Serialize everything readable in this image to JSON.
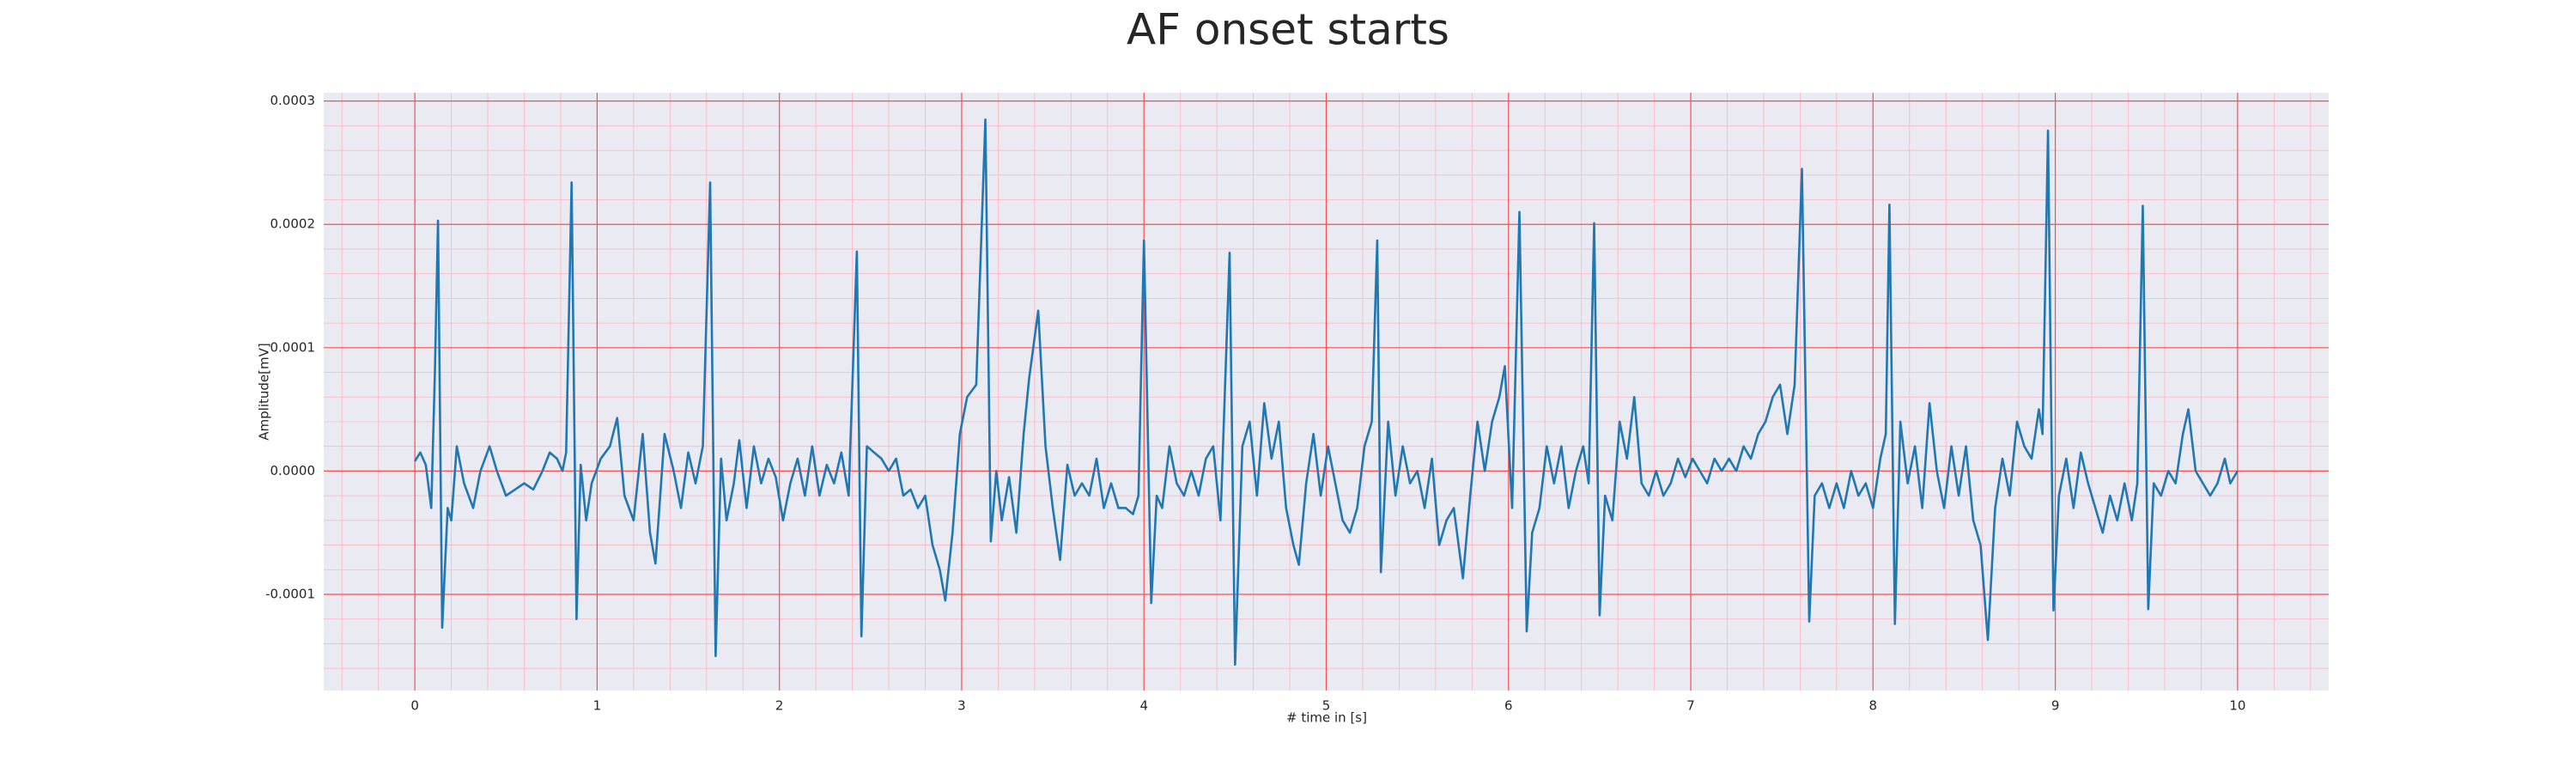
{
  "chart_data": {
    "type": "line",
    "title": "AF onset starts",
    "xlabel": "# time in [s]",
    "ylabel": "Amplitude[mV]",
    "color": "#1f77b4",
    "grid": true,
    "minor_grid_divisions": 5,
    "xlim": [
      -0.5,
      10.5
    ],
    "ylim": [
      -0.000178,
      0.0003067
    ],
    "xticks": [
      0,
      1,
      2,
      3,
      4,
      5,
      6,
      7,
      8,
      9,
      10
    ],
    "yticks": [
      {
        "value": -0.0001,
        "label": "-0.0001"
      },
      {
        "value": 0,
        "label": "0.0000"
      },
      {
        "value": 0.0001,
        "label": "0.0001"
      },
      {
        "value": 0.0002,
        "label": "0.0002"
      },
      {
        "value": 0.0003,
        "label": "0.0003"
      }
    ],
    "x": [
      0,
      0.03,
      0.06,
      0.09,
      0.11,
      0.127,
      0.15,
      0.18,
      0.2,
      0.23,
      0.27,
      0.32,
      0.36,
      0.41,
      0.45,
      0.5,
      0.55,
      0.6,
      0.65,
      0.7,
      0.74,
      0.78,
      0.81,
      0.83,
      0.86,
      0.887,
      0.91,
      0.94,
      0.97,
      1.02,
      1.07,
      1.11,
      1.15,
      1.2,
      1.25,
      1.29,
      1.32,
      1.37,
      1.42,
      1.46,
      1.5,
      1.54,
      1.58,
      1.62,
      1.65,
      1.68,
      1.71,
      1.75,
      1.78,
      1.82,
      1.86,
      1.9,
      1.94,
      1.98,
      2.02,
      2.06,
      2.1,
      2.14,
      2.18,
      2.22,
      2.26,
      2.3,
      2.34,
      2.38,
      2.425,
      2.45,
      2.48,
      2.52,
      2.56,
      2.6,
      2.64,
      2.68,
      2.72,
      2.76,
      2.8,
      2.84,
      2.88,
      2.91,
      2.95,
      2.99,
      3.03,
      3.08,
      3.13,
      3.16,
      3.19,
      3.22,
      3.26,
      3.3,
      3.34,
      3.37,
      3.42,
      3.46,
      3.5,
      3.54,
      3.58,
      3.62,
      3.66,
      3.7,
      3.74,
      3.78,
      3.82,
      3.86,
      3.9,
      3.94,
      3.97,
      4.0,
      4.04,
      4.07,
      4.1,
      4.14,
      4.18,
      4.22,
      4.26,
      4.3,
      4.34,
      4.38,
      4.42,
      4.47,
      4.5,
      4.54,
      4.58,
      4.62,
      4.66,
      4.7,
      4.74,
      4.78,
      4.82,
      4.85,
      4.89,
      4.93,
      4.97,
      5.01,
      5.05,
      5.09,
      5.13,
      5.17,
      5.21,
      5.25,
      5.28,
      5.3,
      5.34,
      5.38,
      5.42,
      5.46,
      5.5,
      5.54,
      5.58,
      5.62,
      5.66,
      5.7,
      5.75,
      5.79,
      5.83,
      5.87,
      5.91,
      5.95,
      5.98,
      6.02,
      6.06,
      6.1,
      6.13,
      6.17,
      6.21,
      6.25,
      6.29,
      6.33,
      6.37,
      6.41,
      6.44,
      6.47,
      6.5,
      6.53,
      6.57,
      6.61,
      6.65,
      6.69,
      6.73,
      6.77,
      6.81,
      6.85,
      6.89,
      6.93,
      6.97,
      7.01,
      7.05,
      7.09,
      7.13,
      7.17,
      7.21,
      7.25,
      7.29,
      7.33,
      7.37,
      7.41,
      7.45,
      7.49,
      7.53,
      7.57,
      7.61,
      7.65,
      7.68,
      7.72,
      7.76,
      7.8,
      7.84,
      7.88,
      7.92,
      7.96,
      8.0,
      8.04,
      8.07,
      8.09,
      8.12,
      8.15,
      8.19,
      8.23,
      8.27,
      8.31,
      8.35,
      8.39,
      8.43,
      8.47,
      8.51,
      8.55,
      8.59,
      8.63,
      8.67,
      8.71,
      8.75,
      8.79,
      8.83,
      8.87,
      8.91,
      8.93,
      8.96,
      8.99,
      9.02,
      9.06,
      9.1,
      9.14,
      9.18,
      9.22,
      9.26,
      9.3,
      9.34,
      9.38,
      9.42,
      9.45,
      9.48,
      9.51,
      9.54,
      9.58,
      9.62,
      9.66,
      9.7,
      9.73,
      9.77,
      9.81,
      9.85,
      9.89,
      9.93,
      9.96,
      10.0
    ],
    "values": [
      8e-06,
      1.5e-05,
      5e-06,
      -3e-05,
      8e-05,
      0.000203,
      -0.000127,
      -3e-05,
      -4e-05,
      2e-05,
      -1e-05,
      -3e-05,
      0,
      2e-05,
      0,
      -2e-05,
      -1.5e-05,
      -1e-05,
      -1.5e-05,
      0,
      1.5e-05,
      1e-05,
      0,
      1.5e-05,
      0.000234,
      -0.00012,
      5e-06,
      -4e-05,
      -1e-05,
      1e-05,
      2e-05,
      4.3e-05,
      -2e-05,
      -4e-05,
      3e-05,
      -5e-05,
      -7.5e-05,
      3e-05,
      0,
      -3e-05,
      1.5e-05,
      -1e-05,
      2e-05,
      0.000234,
      -0.00015,
      1e-05,
      -4e-05,
      -1e-05,
      2.5e-05,
      -3e-05,
      2e-05,
      -1e-05,
      1e-05,
      -5e-06,
      -4e-05,
      -1e-05,
      1e-05,
      -2e-05,
      2e-05,
      -2e-05,
      5e-06,
      -1e-05,
      1.5e-05,
      -2e-05,
      0.000178,
      -0.000134,
      2e-05,
      1.5e-05,
      1e-05,
      0,
      1e-05,
      -2e-05,
      -1.5e-05,
      -3e-05,
      -2e-05,
      -6e-05,
      -8e-05,
      -0.000105,
      -5e-05,
      3e-05,
      6e-05,
      7e-05,
      0.000285,
      -5.7e-05,
      0,
      -4e-05,
      -5e-06,
      -5e-05,
      3e-05,
      7.5e-05,
      0.00013,
      2e-05,
      -3e-05,
      -7.2e-05,
      5e-06,
      -2e-05,
      -1e-05,
      -2e-05,
      1e-05,
      -3e-05,
      -1e-05,
      -3e-05,
      -3e-05,
      -3.5e-05,
      -2e-05,
      0.000187,
      -0.000107,
      -2e-05,
      -3e-05,
      2e-05,
      -1e-05,
      -2e-05,
      0,
      -2e-05,
      1e-05,
      2e-05,
      -4e-05,
      0.000177,
      -0.000157,
      2e-05,
      4e-05,
      -2e-05,
      5.5e-05,
      1e-05,
      4e-05,
      -3e-05,
      -6e-05,
      -7.6e-05,
      -1e-05,
      3e-05,
      -2e-05,
      2e-05,
      -1e-05,
      -4e-05,
      -5e-05,
      -3e-05,
      2e-05,
      4e-05,
      0.000187,
      -8.2e-05,
      4e-05,
      -2e-05,
      2e-05,
      -1e-05,
      0,
      -3e-05,
      1e-05,
      -6e-05,
      -4e-05,
      -3e-05,
      -8.7e-05,
      -2e-05,
      4e-05,
      0,
      4e-05,
      6e-05,
      8.5e-05,
      -3e-05,
      0.00021,
      -0.00013,
      -5e-05,
      -3e-05,
      2e-05,
      -1e-05,
      2e-05,
      -3e-05,
      0,
      2e-05,
      -1e-05,
      0.000201,
      -0.000117,
      -2e-05,
      -4e-05,
      4e-05,
      1e-05,
      6e-05,
      -1e-05,
      -2e-05,
      0,
      -2e-05,
      -1e-05,
      1e-05,
      -5e-06,
      1e-05,
      0,
      -1e-05,
      1e-05,
      0,
      1e-05,
      0,
      2e-05,
      1e-05,
      3e-05,
      4e-05,
      6e-05,
      7e-05,
      3e-05,
      7e-05,
      0.000245,
      -0.000122,
      -2e-05,
      -1e-05,
      -3e-05,
      -1e-05,
      -3e-05,
      0,
      -2e-05,
      -1e-05,
      -3e-05,
      1e-05,
      3e-05,
      0.000216,
      -0.000124,
      4e-05,
      -1e-05,
      2e-05,
      -3e-05,
      5.5e-05,
      0,
      -3e-05,
      2e-05,
      -2e-05,
      2e-05,
      -4e-05,
      -6e-05,
      -0.000137,
      -3e-05,
      1e-05,
      -2e-05,
      4e-05,
      2e-05,
      1e-05,
      5e-05,
      3e-05,
      0.000276,
      -0.000113,
      -2e-05,
      1e-05,
      -3e-05,
      1.5e-05,
      -1e-05,
      -3e-05,
      -5e-05,
      -2e-05,
      -4e-05,
      -1e-05,
      -4e-05,
      -1e-05,
      0.000215,
      -0.000112,
      -1e-05,
      -2e-05,
      0,
      -1e-05,
      3e-05,
      5e-05,
      0,
      -1e-05,
      -2e-05,
      -1e-05,
      1e-05,
      -1e-05,
      0
    ]
  }
}
